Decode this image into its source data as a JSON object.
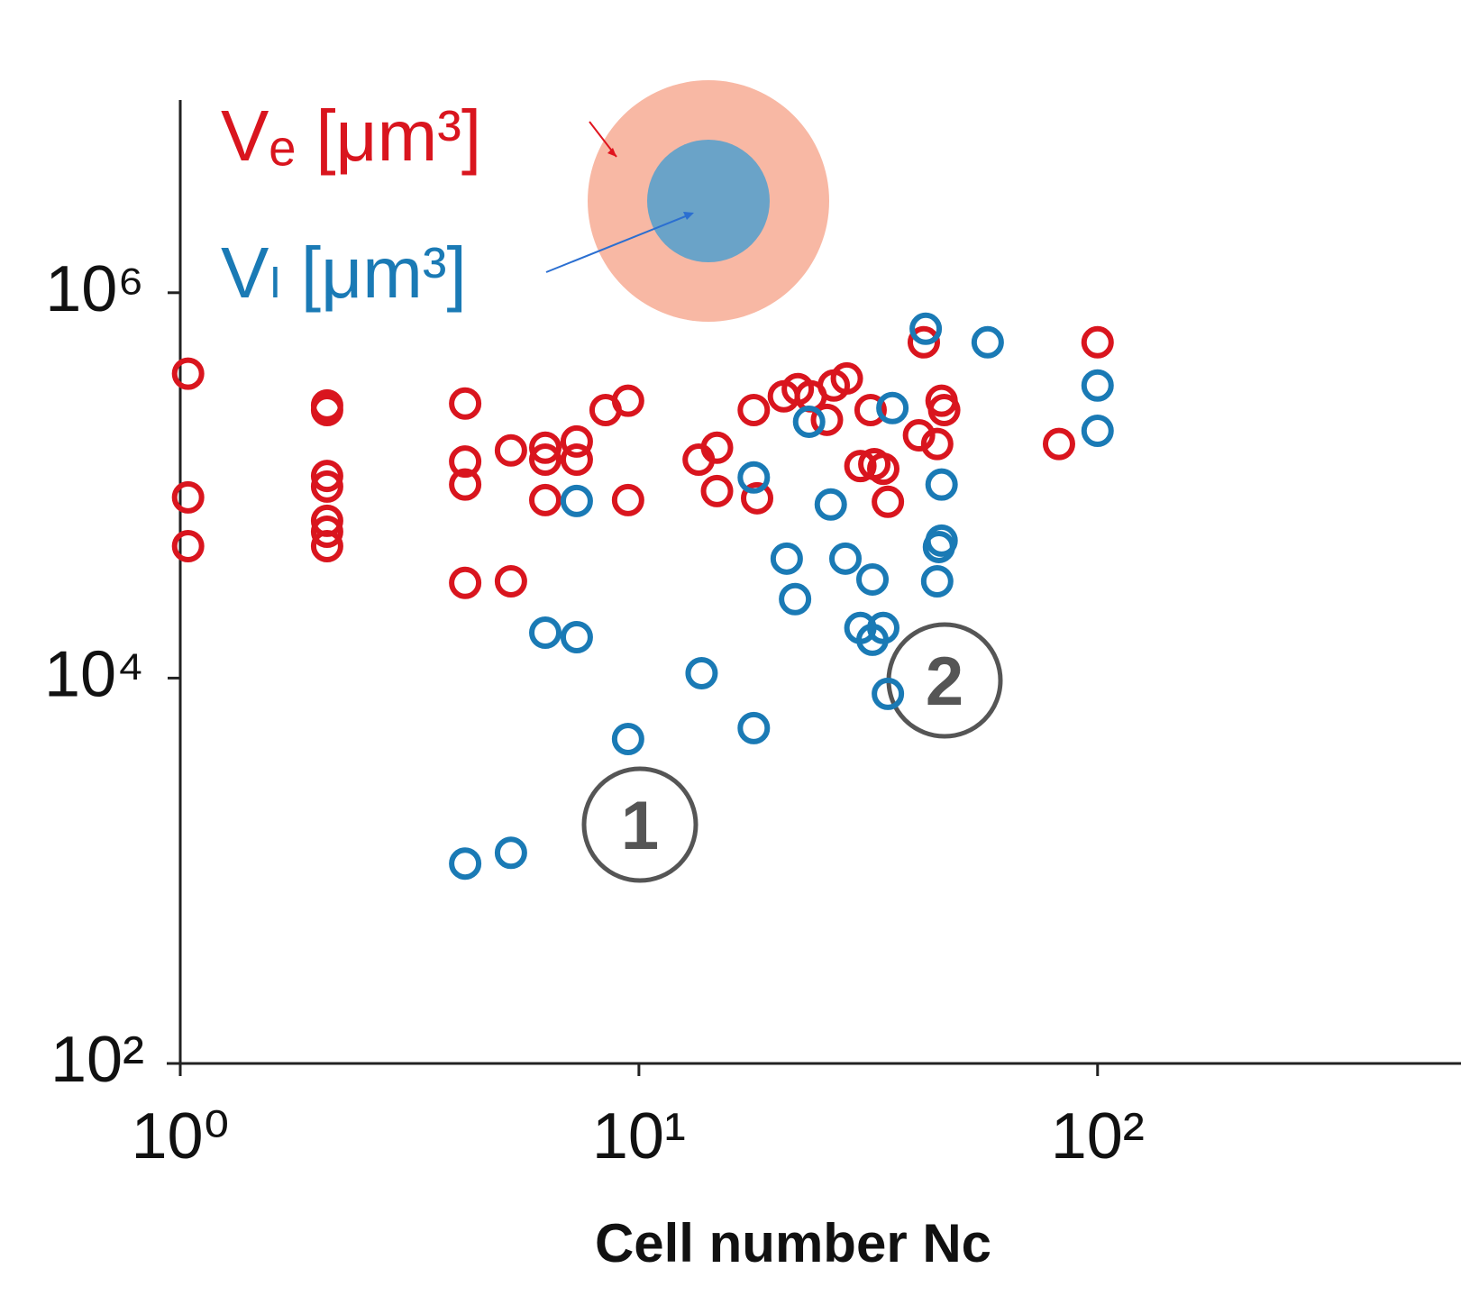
{
  "chart_data": {
    "type": "scatter",
    "x_label": "Cell number Nc",
    "xscale": "log",
    "yscale": "log",
    "xlim": [
      1,
      620
    ],
    "ylim": [
      100,
      10000000
    ],
    "xticks": [
      {
        "value": 1,
        "label": "10⁰"
      },
      {
        "value": 10,
        "label": "10¹"
      },
      {
        "value": 100,
        "label": "10²"
      }
    ],
    "yticks": [
      {
        "value": 100,
        "label": "10²"
      },
      {
        "value": 10000,
        "label": "10⁴"
      },
      {
        "value": 1000000,
        "label": "10⁶"
      }
    ],
    "annotations": [
      "1",
      "2"
    ],
    "series": [
      {
        "name": "Vₑ [μm³]",
        "color": "#d9151e",
        "x": [
          1.04,
          1.04,
          1.04,
          2.09,
          2.09,
          2.09,
          2.09,
          2.09,
          2.09,
          2.09,
          4.18,
          4.18,
          4.18,
          4.18,
          5.26,
          5.26,
          6.25,
          6.25,
          6.25,
          7.32,
          7.32,
          8.46,
          9.47,
          9.47,
          13.5,
          14.8,
          14.8,
          17.8,
          18.1,
          20.7,
          22.2,
          23.7,
          25.7,
          26.6,
          28.4,
          32.0,
          30.4,
          32.6,
          34.1,
          34.9,
          40.8,
          44.7,
          45.7,
          46.3,
          41.8,
          82.4,
          100
        ],
        "y": [
          380000,
          86700,
          48400,
          260000,
          246000,
          112000,
          98600,
          65500,
          57500,
          48400,
          266000,
          133000,
          101000,
          31200,
          152000,
          31800,
          157000,
          136000,
          83900,
          169000,
          136000,
          246000,
          275000,
          83900,
          136000,
          157000,
          93500,
          246000,
          85800,
          290000,
          316000,
          290000,
          219000,
          330000,
          359000,
          246000,
          126000,
          129000,
          122000,
          82200,
          182000,
          164000,
          275000,
          246000,
          553000,
          164000,
          553000
        ]
      },
      {
        "name": "Vₗ [μm³]",
        "color": "#1a7ab5",
        "x": [
          7.32,
          6.25,
          7.32,
          4.18,
          5.26,
          9.47,
          13.7,
          17.8,
          17.8,
          21.0,
          21.9,
          23.5,
          26.2,
          28.2,
          32.3,
          30.4,
          32.3,
          34.1,
          34.9,
          35.7,
          44.7,
          45.7,
          45.7,
          45.1,
          42.2,
          57.6,
          100,
          100
        ],
        "y": [
          83000,
          17200,
          16300,
          1090,
          1240,
          4830,
          10600,
          110000,
          5500,
          41700,
          25700,
          214000,
          79600,
          41700,
          32500,
          18200,
          15800,
          18200,
          8280,
          252000,
          31800,
          101000,
          51700,
          47900,
          650000,
          553000,
          330000,
          192000
        ]
      }
    ]
  }
}
